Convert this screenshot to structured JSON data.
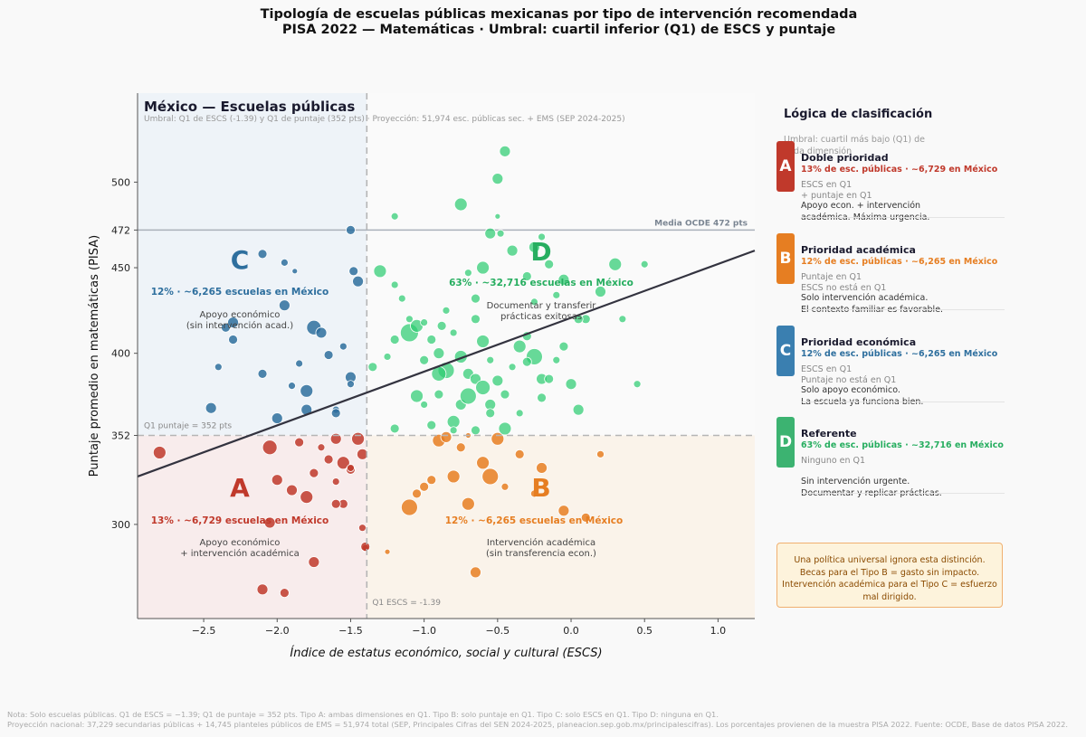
{
  "figure": {
    "title_line1": "Tipología de escuelas públicas mexicanas por tipo de intervención recomendada",
    "title_line2": "PISA 2022 — Matemáticas · Umbral: cuartil inferior (Q1) de ESCS y puntaje"
  },
  "plot": {
    "heading": "México — Escuelas públicas",
    "subheading": "Umbral: Q1 de ESCS (-1.39) y Q1 de puntaje (352 pts)  ·  Proyección: 51,974 esc. públicas sec. + EMS (SEP 2024-2025)",
    "oecd_label": "Media OCDE 472 pts",
    "q1_score_label": "Q1 puntaje = 352 pts",
    "q1_escs_label": "Q1 ESCS = -1.39"
  },
  "quadrants": {
    "A": {
      "letter": "A",
      "stat": "13%  ·  ~6,729 escuelas en México",
      "desc1": "Apoyo económico",
      "desc2": "+ intervención académica",
      "color": "#c0392b"
    },
    "B": {
      "letter": "B",
      "stat": "12%  ·  ~6,265 escuelas en México",
      "desc1": "Intervención académica",
      "desc2": "(sin transferencia econ.)",
      "color": "#e67e22"
    },
    "C": {
      "letter": "C",
      "stat": "12%  ·  ~6,265 escuelas en México",
      "desc1": "Apoyo económico",
      "desc2": "(sin intervención acad.)",
      "color": "#2e6f9e"
    },
    "D": {
      "letter": "D",
      "stat": "63%  ·  ~32,716 escuelas en México",
      "desc1": "Documentar y transferir",
      "desc2": "prácticas exitosas",
      "color": "#27ae60"
    }
  },
  "panel": {
    "title": "Lógica de clasificación",
    "subtitle": "Umbral: cuartil más bajo (Q1) de cada dimensión",
    "cards": [
      {
        "letter": "A",
        "title": "Doble prioridad",
        "stat": "13% de esc. públicas  ·  ~6,729 en México",
        "when1": "ESCS en Q1",
        "when2": "+ puntaje en Q1",
        "action1": "Apoyo econ. + intervención",
        "action2": "académica. Máxima urgencia.",
        "color": "#c0392b"
      },
      {
        "letter": "B",
        "title": "Prioridad académica",
        "stat": "12% de esc. públicas  ·  ~6,265 en México",
        "when1": "Puntaje en Q1",
        "when2": "ESCS no está en Q1",
        "action1": "Solo intervención académica.",
        "action2": "El contexto familiar es favorable.",
        "color": "#e67e22"
      },
      {
        "letter": "C",
        "title": "Prioridad económica",
        "stat": "12% de esc. públicas  ·  ~6,265 en México",
        "when1": "ESCS en Q1",
        "when2": "Puntaje no está en Q1",
        "action1": "Solo apoyo económico.",
        "action2": "La escuela ya funciona bien.",
        "color": "#2e6f9e"
      },
      {
        "letter": "D",
        "title": "Referente",
        "stat": "63% de esc. públicas  ·  ~32,716 en México",
        "when1": "Ninguno en Q1",
        "when2": "",
        "action1": "Sin intervención urgente.",
        "action2": "Documentar y replicar prácticas.",
        "color": "#27ae60"
      }
    ],
    "warning": [
      "Una política universal ignora esta distinción.",
      "Becas para el Tipo B = gasto sin impacto.",
      "Intervención académica para el Tipo C = esfuerzo mal dirigido."
    ]
  },
  "footnote": {
    "line1": "Nota: Solo escuelas públicas. Q1 de ESCS = −1.39; Q1 de puntaje = 352 pts. Tipo A: ambas dimensiones en Q1. Tipo B: solo puntaje en Q1. Tipo C: solo ESCS en Q1. Tipo D: ninguna en Q1.",
    "line2": "Proyección nacional: 37,229 secundarias públicas + 14,745 planteles públicos de EMS = 51,974 total (SEP, Principales Cifras del SEN 2024-2025, planeacion.sep.gob.mx/principalescifras). Los porcentajes provienen de la muestra PISA 2022. Fuente: OCDE, Base de datos PISA 2022."
  },
  "chart_data": {
    "type": "scatter",
    "xlabel": "Índice de estatus económico, social y cultural (ESCS)",
    "ylabel": "Puntaje promedio en matemáticas (PISA)",
    "xlim": [
      -2.95,
      1.25
    ],
    "ylim": [
      245,
      552
    ],
    "xticks": [
      -2.5,
      -2.0,
      -1.5,
      -1.0,
      -0.5,
      0.0,
      0.5,
      1.0
    ],
    "xtick_labels": [
      "−2.5",
      "−2.0",
      "−1.5",
      "−1.0",
      "−0.5",
      "0.0",
      "0.5",
      "1.0"
    ],
    "yticks": [
      300,
      352,
      400,
      450,
      472,
      500
    ],
    "thresholds": {
      "escs_q1": -1.39,
      "score_q1": 352,
      "oecd_mean": 472
    },
    "regression_line": {
      "x": [
        -2.95,
        1.25
      ],
      "y": [
        328,
        460
      ]
    },
    "series": [
      {
        "type": "A",
        "color": "#c0392b",
        "points": [
          [
            -2.8,
            342,
            7
          ],
          [
            -2.05,
            345,
            8
          ],
          [
            -2.0,
            326,
            6
          ],
          [
            -1.9,
            320,
            6
          ],
          [
            -1.85,
            348,
            5
          ],
          [
            -1.8,
            316,
            7
          ],
          [
            -1.75,
            330,
            5
          ],
          [
            -1.7,
            345,
            4
          ],
          [
            -1.65,
            338,
            5
          ],
          [
            -1.6,
            325,
            4
          ],
          [
            -1.6,
            350,
            6
          ],
          [
            -1.55,
            336,
            7
          ],
          [
            -1.55,
            312,
            5
          ],
          [
            -1.5,
            332,
            5
          ],
          [
            -1.45,
            350,
            7
          ],
          [
            -1.42,
            341,
            6
          ],
          [
            -1.42,
            298,
            4
          ],
          [
            -1.4,
            286,
            4
          ],
          [
            -2.05,
            301,
            6
          ],
          [
            -1.75,
            278,
            6
          ],
          [
            -2.1,
            262,
            6
          ],
          [
            -1.95,
            260,
            5
          ],
          [
            -1.6,
            312,
            5
          ],
          [
            -1.4,
            287,
            5
          ],
          [
            -1.5,
            333,
            4
          ]
        ]
      },
      {
        "type": "B",
        "color": "#e67e22",
        "points": [
          [
            -1.1,
            310,
            9
          ],
          [
            -1.05,
            318,
            5
          ],
          [
            -1.0,
            322,
            5
          ],
          [
            -0.9,
            349,
            7
          ],
          [
            -0.85,
            351,
            6
          ],
          [
            -0.8,
            328,
            7
          ],
          [
            -0.75,
            345,
            5
          ],
          [
            -0.7,
            312,
            7
          ],
          [
            -0.6,
            336,
            7
          ],
          [
            -0.55,
            328,
            9
          ],
          [
            -0.5,
            350,
            7
          ],
          [
            -0.35,
            341,
            5
          ],
          [
            -0.2,
            333,
            6
          ],
          [
            -0.05,
            308,
            6
          ],
          [
            0.1,
            304,
            5
          ],
          [
            0.2,
            341,
            4
          ],
          [
            -1.25,
            284,
            3
          ],
          [
            -0.65,
            272,
            6
          ],
          [
            -0.95,
            326,
            5
          ],
          [
            -0.7,
            352,
            3
          ],
          [
            -0.45,
            322,
            4
          ],
          [
            -0.25,
            318,
            4
          ]
        ]
      },
      {
        "type": "C",
        "color": "#2e6f9e",
        "points": [
          [
            -2.45,
            368,
            6
          ],
          [
            -2.4,
            392,
            4
          ],
          [
            -2.35,
            415,
            5
          ],
          [
            -2.3,
            418,
            6
          ],
          [
            -2.3,
            408,
            5
          ],
          [
            -2.1,
            388,
            5
          ],
          [
            -2.0,
            362,
            6
          ],
          [
            -1.95,
            428,
            6
          ],
          [
            -1.9,
            381,
            4
          ],
          [
            -1.85,
            394,
            4
          ],
          [
            -1.8,
            378,
            7
          ],
          [
            -1.8,
            367,
            6
          ],
          [
            -1.75,
            415,
            8
          ],
          [
            -1.7,
            412,
            6
          ],
          [
            -1.65,
            399,
            5
          ],
          [
            -1.6,
            367,
            4
          ],
          [
            -1.55,
            404,
            4
          ],
          [
            -1.5,
            386,
            6
          ],
          [
            -1.45,
            442,
            6
          ],
          [
            -1.48,
            448,
            5
          ],
          [
            -1.5,
            472,
            5
          ],
          [
            -2.1,
            458,
            5
          ],
          [
            -1.95,
            453,
            4
          ],
          [
            -1.88,
            448,
            3
          ],
          [
            -1.6,
            365,
            5
          ],
          [
            -1.5,
            382,
            4
          ]
        ]
      },
      {
        "type": "D",
        "color": "#2ecc71",
        "points": [
          [
            -0.45,
            518,
            6
          ],
          [
            -0.5,
            502,
            6
          ],
          [
            -0.75,
            487,
            7
          ],
          [
            -0.5,
            480,
            3
          ],
          [
            -0.55,
            470,
            6
          ],
          [
            -0.6,
            450,
            7
          ],
          [
            -0.4,
            460,
            6
          ],
          [
            -0.3,
            445,
            5
          ],
          [
            -0.25,
            430,
            4
          ],
          [
            -1.3,
            448,
            7
          ],
          [
            -1.2,
            440,
            4
          ],
          [
            -1.1,
            412,
            10
          ],
          [
            -1.05,
            416,
            7
          ],
          [
            -1.0,
            418,
            4
          ],
          [
            -0.95,
            408,
            5
          ],
          [
            -0.9,
            400,
            6
          ],
          [
            -0.9,
            376,
            5
          ],
          [
            -0.85,
            390,
            9
          ],
          [
            -0.8,
            412,
            4
          ],
          [
            -0.75,
            398,
            7
          ],
          [
            -0.7,
            388,
            6
          ],
          [
            -0.65,
            420,
            5
          ],
          [
            -0.6,
            407,
            7
          ],
          [
            -0.55,
            396,
            4
          ],
          [
            -0.5,
            384,
            6
          ],
          [
            -0.45,
            376,
            5
          ],
          [
            -0.4,
            392,
            4
          ],
          [
            -0.35,
            404,
            7
          ],
          [
            -0.3,
            410,
            5
          ],
          [
            -0.25,
            398,
            9
          ],
          [
            -0.2,
            385,
            6
          ],
          [
            -0.1,
            396,
            4
          ],
          [
            0.0,
            382,
            6
          ],
          [
            0.05,
            367,
            6
          ],
          [
            -1.05,
            375,
            7
          ],
          [
            -1.0,
            370,
            4
          ],
          [
            -0.95,
            358,
            5
          ],
          [
            -0.9,
            388,
            8
          ],
          [
            -0.8,
            360,
            7
          ],
          [
            -0.75,
            370,
            6
          ],
          [
            -0.7,
            375,
            9
          ],
          [
            -0.65,
            385,
            6
          ],
          [
            -0.55,
            370,
            6
          ],
          [
            -0.45,
            356,
            7
          ],
          [
            -0.35,
            365,
            4
          ],
          [
            -0.2,
            374,
            5
          ],
          [
            -0.15,
            385,
            5
          ],
          [
            -0.05,
            404,
            5
          ],
          [
            0.1,
            420,
            5
          ],
          [
            0.2,
            436,
            6
          ],
          [
            0.3,
            452,
            7
          ],
          [
            0.45,
            382,
            4
          ],
          [
            0.35,
            420,
            4
          ],
          [
            0.5,
            452,
            4
          ],
          [
            -1.25,
            398,
            4
          ],
          [
            -1.35,
            392,
            5
          ],
          [
            -1.2,
            408,
            5
          ],
          [
            -1.15,
            432,
            4
          ],
          [
            -1.1,
            420,
            4
          ],
          [
            -0.6,
            380,
            8
          ],
          [
            -0.55,
            365,
            5
          ],
          [
            -0.65,
            355,
            5
          ],
          [
            -0.8,
            355,
            4
          ],
          [
            -1.2,
            356,
            5
          ],
          [
            -0.3,
            395,
            5
          ],
          [
            -0.25,
            462,
            6
          ],
          [
            -0.15,
            452,
            5
          ],
          [
            -0.05,
            443,
            6
          ],
          [
            0.05,
            420,
            5
          ],
          [
            -0.7,
            447,
            4
          ],
          [
            -0.65,
            432,
            5
          ],
          [
            -0.85,
            425,
            4
          ],
          [
            -1.2,
            480,
            4
          ],
          [
            -0.1,
            434,
            4
          ],
          [
            -0.2,
            468,
            4
          ],
          [
            -0.48,
            470,
            4
          ],
          [
            -1.0,
            396,
            5
          ],
          [
            -0.88,
            416,
            5
          ]
        ]
      }
    ]
  }
}
